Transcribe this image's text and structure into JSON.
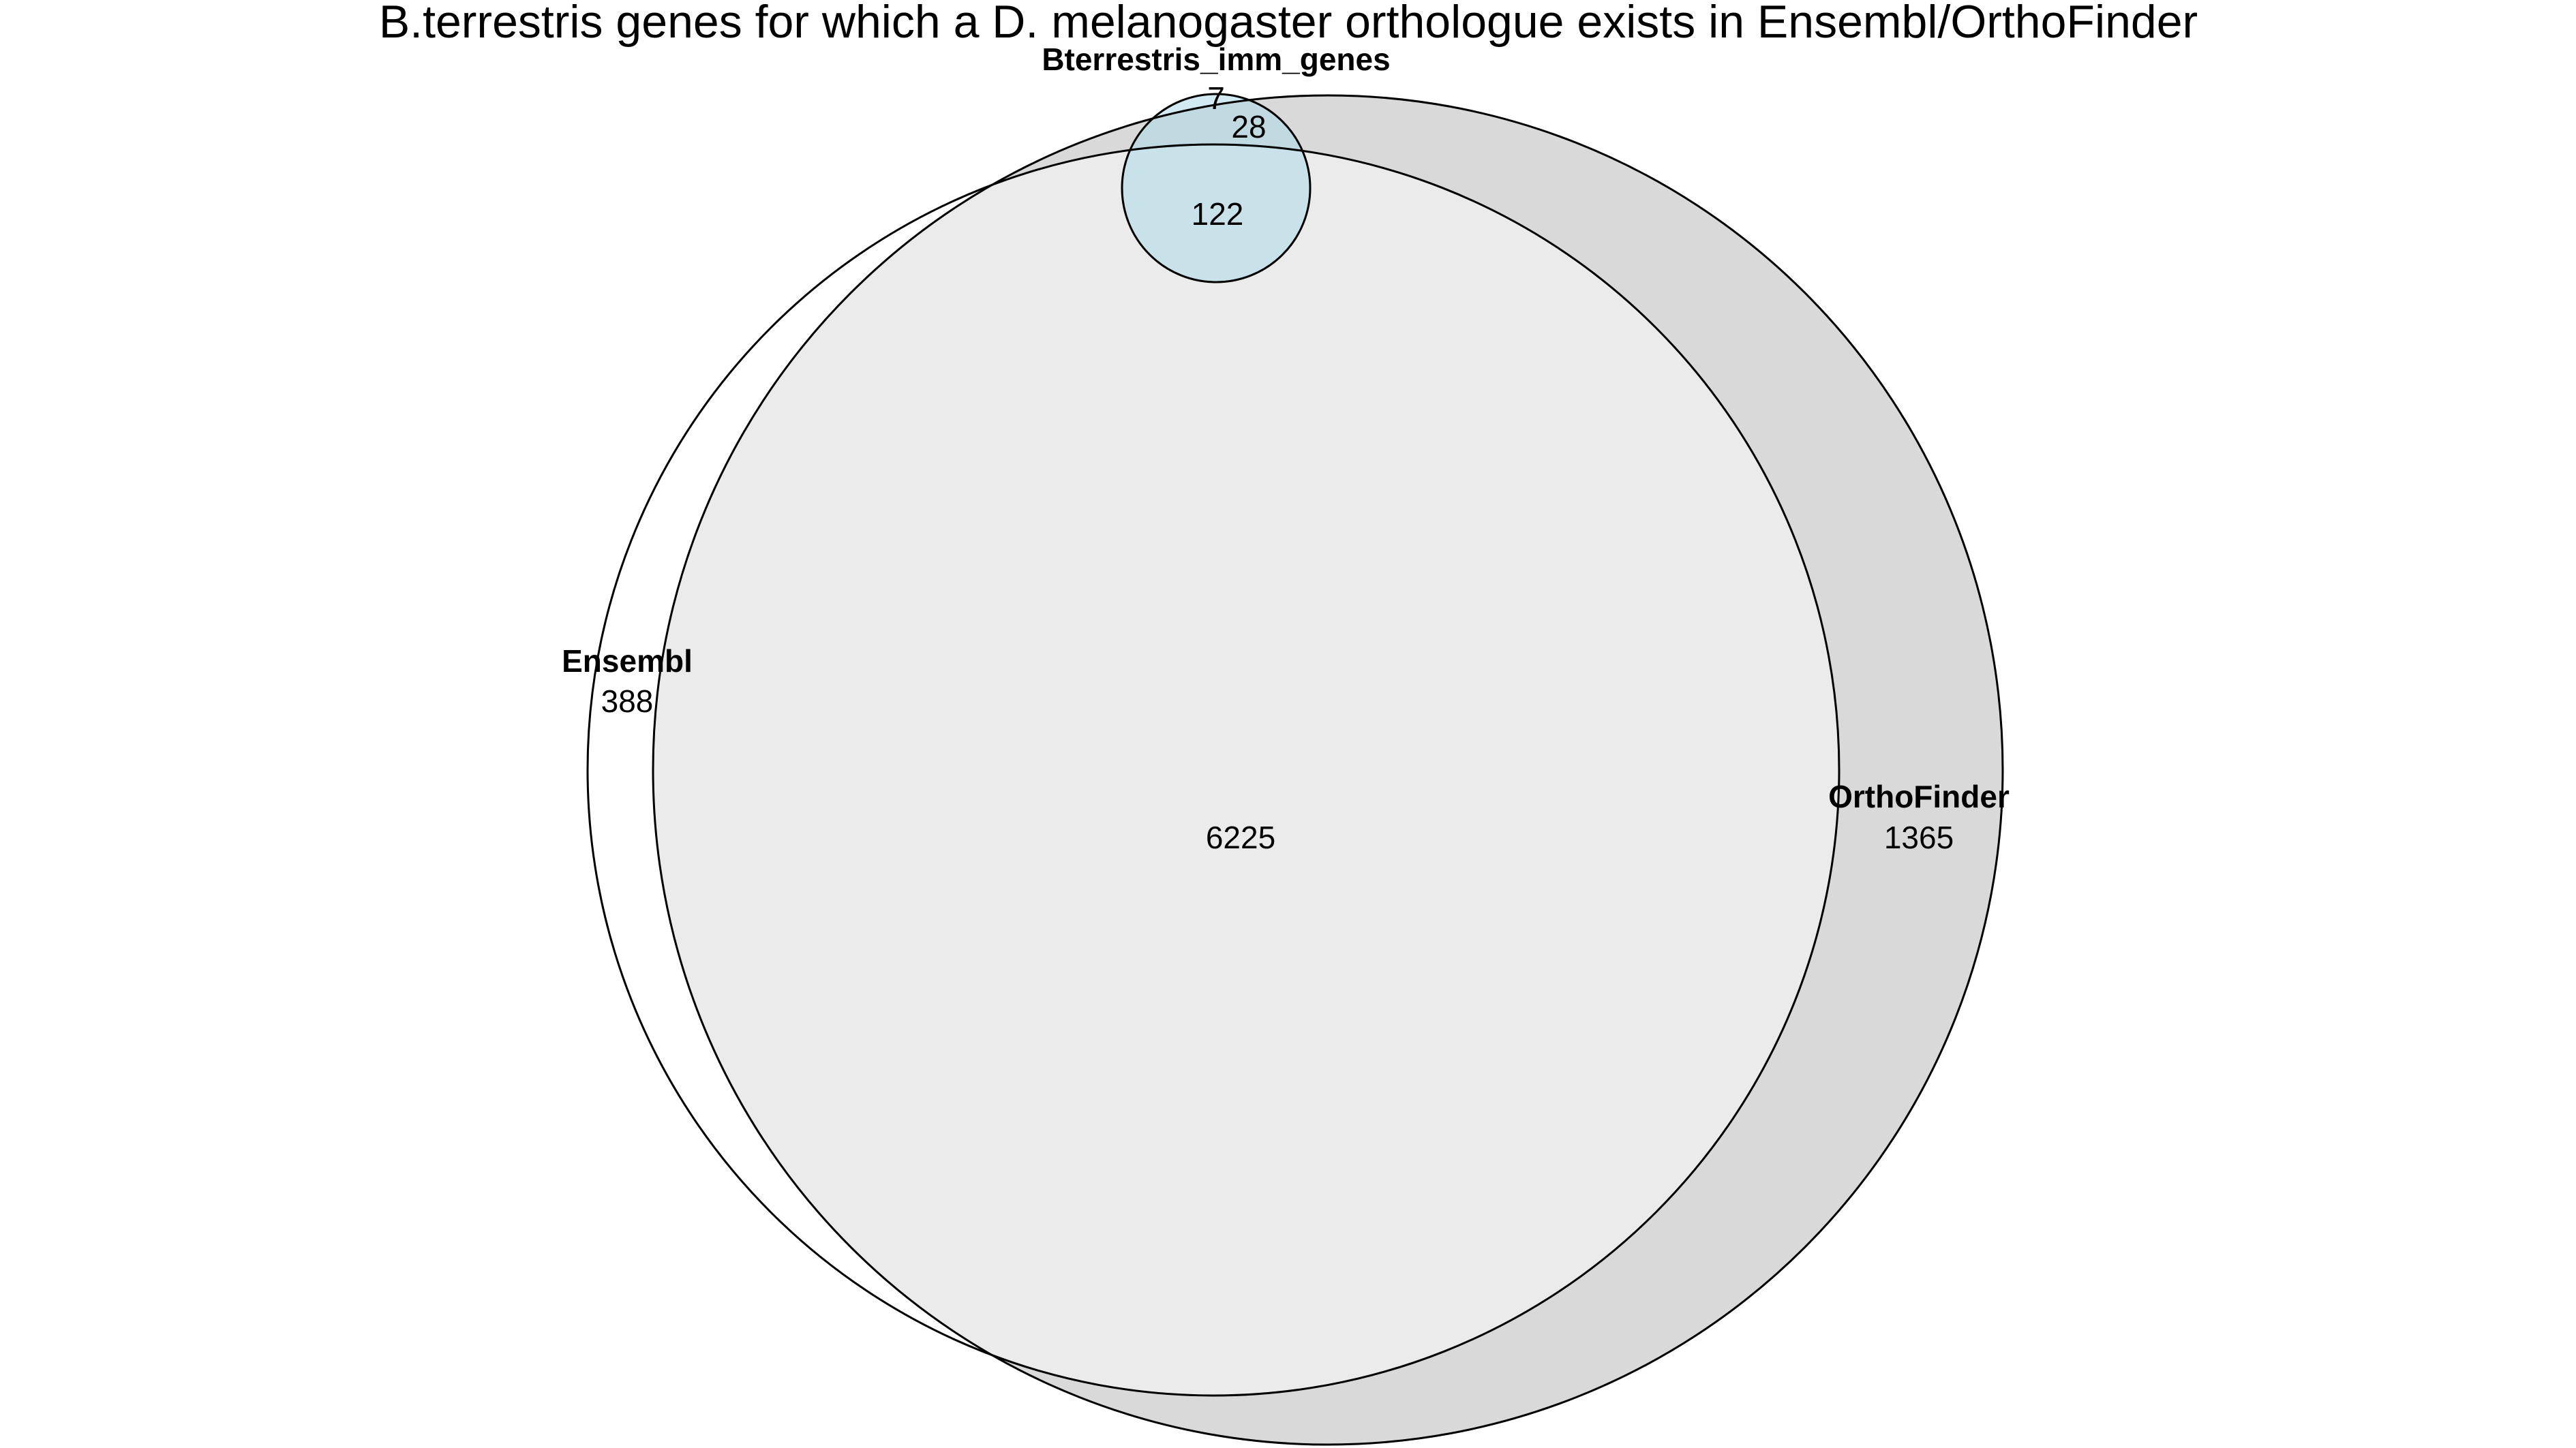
{
  "title": "B.terrestris genes for which a D. melanogaster orthologue exists in Ensembl/OrthoFinder",
  "sets": {
    "immune": {
      "name": "Bterrestris_imm_genes",
      "color": "#add8e6"
    },
    "ensembl": {
      "name": "Ensembl",
      "color": "#ffffff"
    },
    "orthofinder": {
      "name": "OrthoFinder",
      "color": "#d9d9d9"
    }
  },
  "regions": {
    "ensembl_only": "388",
    "orthofinder_only": "1365",
    "ensembl_and_orthofinder": "6225",
    "immune_only": "7",
    "immune_and_orthofinder": "28",
    "immune_ensembl_orthofinder": "122"
  }
}
